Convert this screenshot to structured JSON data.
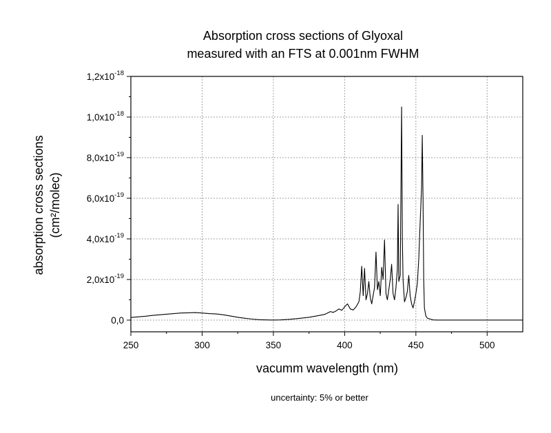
{
  "chart_data": {
    "type": "line",
    "title_lines": [
      "Absorption cross sections of Glyoxal",
      "measured with an FTS at 0.001nm FWHM"
    ],
    "xlabel": "vacumm wavelength (nm)",
    "ylabel_lines": [
      "absorption cross sections",
      "(cm²/molec)"
    ],
    "footnote": "uncertainty: 5% or better",
    "xlim": [
      250,
      525
    ],
    "ylim": [
      -5e-20,
      1.2e-18
    ],
    "x_ticks": [
      250,
      300,
      350,
      400,
      450,
      500
    ],
    "x_tick_labels": [
      "250",
      "300",
      "350",
      "400",
      "450",
      "500"
    ],
    "y_ticks": [
      0,
      2e-19,
      4e-19,
      6e-19,
      8e-19,
      1e-18,
      1.2e-18
    ],
    "y_tick_labels": [
      {
        "mantissa": "0,0",
        "exp": ""
      },
      {
        "mantissa": "2,0x10",
        "exp": "-19"
      },
      {
        "mantissa": "4,0x10",
        "exp": "-19"
      },
      {
        "mantissa": "6,0x10",
        "exp": "-19"
      },
      {
        "mantissa": "8,0x10",
        "exp": "-19"
      },
      {
        "mantissa": "1,0x10",
        "exp": "-18"
      },
      {
        "mantissa": "1,2x10",
        "exp": "-18"
      }
    ],
    "grid": true,
    "line_color": "#000000",
    "grid_color": "#a0a0a0",
    "series": [
      {
        "x": [
          250,
          255,
          260,
          265,
          270,
          275,
          280,
          285,
          290,
          295,
          300,
          305,
          310,
          315,
          320,
          325,
          330,
          335,
          340,
          345,
          350,
          355,
          360,
          365,
          370,
          375,
          380,
          383,
          386,
          388,
          390,
          392,
          394,
          396,
          398,
          400,
          402,
          404,
          406,
          408,
          410,
          411,
          412,
          413,
          414,
          415,
          416,
          417,
          418,
          419,
          420,
          421,
          422,
          423,
          424,
          425,
          426,
          427,
          428,
          429,
          430,
          431,
          432,
          433,
          434,
          435,
          436,
          437,
          437.5,
          438,
          439,
          440,
          440.5,
          441,
          442,
          443,
          444,
          445,
          446,
          447,
          448,
          449,
          450,
          451,
          452,
          453,
          454,
          454.5,
          455,
          455.5,
          456,
          457,
          458,
          460,
          462,
          465,
          470,
          480,
          490,
          500,
          510,
          520,
          525
        ],
        "y": [
          1.3e-20,
          1.6e-20,
          1.9e-20,
          2.3e-20,
          2.6e-20,
          2.9e-20,
          3.2e-20,
          3.5e-20,
          3.6e-20,
          3.7e-20,
          3.5e-20,
          3.2e-20,
          3e-20,
          2.6e-20,
          2e-20,
          1.4e-20,
          9e-21,
          5e-21,
          2e-21,
          1e-21,
          5e-22,
          1e-21,
          3e-21,
          6e-21,
          1e-20,
          1.4e-20,
          2e-20,
          2.4e-20,
          2.8e-20,
          3.5e-20,
          4.2e-20,
          3.8e-20,
          4.5e-20,
          5.5e-20,
          4.8e-20,
          6.5e-20,
          8e-20,
          5.5e-20,
          5e-20,
          6.5e-20,
          9e-20,
          1.4e-19,
          2.65e-19,
          1.2e-19,
          2.55e-19,
          1e-19,
          1.3e-19,
          1.9e-19,
          1.1e-19,
          8e-20,
          1.2e-19,
          1.6e-19,
          3.35e-19,
          1.5e-19,
          1.9e-19,
          1.2e-19,
          2.6e-19,
          2e-19,
          3.95e-19,
          1.3e-19,
          1e-19,
          1.5e-19,
          2e-19,
          2.75e-19,
          1.3e-19,
          1e-19,
          1.6e-19,
          2.5e-19,
          5.7e-19,
          1.9e-19,
          2.2e-19,
          1.05e-18,
          4e-19,
          2e-19,
          9e-20,
          1.1e-19,
          1.4e-19,
          2.2e-19,
          1.2e-19,
          8e-20,
          6e-20,
          9e-20,
          1.3e-19,
          1.8e-19,
          3e-19,
          4.8e-19,
          6.5e-19,
          9.1e-19,
          6e-19,
          2e-19,
          6e-20,
          2e-20,
          1e-20,
          5e-21,
          1e-21,
          5e-22,
          5e-22,
          3e-22,
          2e-22,
          2e-22,
          3e-22,
          4e-22,
          2e-22
        ]
      }
    ]
  }
}
